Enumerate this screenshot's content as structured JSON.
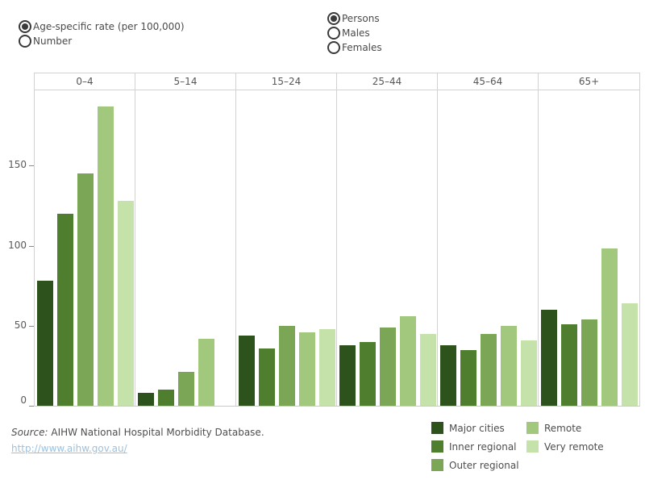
{
  "controls": {
    "measure_group": {
      "options": [
        {
          "label": "Age-specific rate (per 100,000)",
          "selected": true
        },
        {
          "label": "Number",
          "selected": false
        }
      ]
    },
    "population_group": {
      "options": [
        {
          "label": "Persons",
          "selected": true
        },
        {
          "label": "Males",
          "selected": false
        },
        {
          "label": "Females",
          "selected": false
        }
      ]
    }
  },
  "chart_data": {
    "type": "bar",
    "categories": [
      "0–4",
      "5–14",
      "15–24",
      "25–44",
      "45–64",
      "65+"
    ],
    "series": [
      {
        "name": "Major cities",
        "color": "#2e521c",
        "values": [
          78,
          8,
          44,
          38,
          38,
          60
        ]
      },
      {
        "name": "Inner regional",
        "color": "#507e2f",
        "values": [
          120,
          10,
          36,
          40,
          35,
          51
        ]
      },
      {
        "name": "Outer regional",
        "color": "#7aa655",
        "values": [
          145,
          21,
          50,
          49,
          45,
          54
        ]
      },
      {
        "name": "Remote",
        "color": "#a2c87e",
        "values": [
          187,
          42,
          46,
          56,
          50,
          98
        ]
      },
      {
        "name": "Very remote",
        "color": "#c6e2ab",
        "values": [
          128,
          0,
          48,
          45,
          41,
          64
        ]
      }
    ],
    "yticks": [
      0,
      50,
      100,
      150
    ],
    "ylim": [
      0,
      197
    ],
    "grid": false,
    "legend_position": "bottom-right"
  },
  "legend": {
    "columns": [
      [
        "Major cities",
        "Inner regional",
        "Outer regional"
      ],
      [
        "Remote",
        "Very remote"
      ]
    ]
  },
  "footer": {
    "source_label": "Source:",
    "source_text": "AIHW National Hospital Morbidity Database.",
    "link_text": "http://www.aihw.gov.au/"
  }
}
